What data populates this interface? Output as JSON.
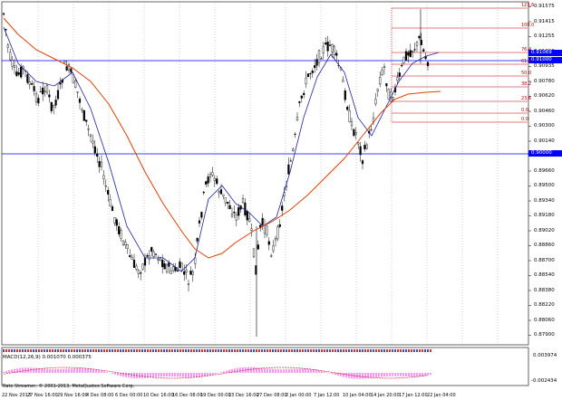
{
  "price_axis": {
    "labels": [
      "0.91575",
      "0.91415",
      "0.91255",
      "0.91090",
      "0.90935",
      "0.90780",
      "0.90620",
      "0.90460",
      "0.90300",
      "0.90140",
      "0.89820",
      "0.89660",
      "0.89500",
      "0.89340",
      "0.89180",
      "0.89020",
      "0.88860",
      "0.88700",
      "0.88540",
      "0.88380",
      "0.88220",
      "0.88060",
      "0.87900"
    ],
    "highlighted": [
      {
        "text": "0.91069"
      },
      {
        "text": "0.91000"
      },
      {
        "text": "0.90000"
      }
    ]
  },
  "fib_levels": [
    "123.6",
    "100.0",
    "76.4",
    "61.8",
    "50.0",
    "38.2",
    "23.6",
    "0.0",
    "0.0"
  ],
  "macd": {
    "label": "MACD(12,26,9) 0.001070 0.000375",
    "axis_top": "0.003974",
    "axis_bottom": "-0.002434"
  },
  "time_axis": [
    "22 Nov 2013",
    "27 Nov 16:00",
    "29 Nov 16:00",
    "4 Dec 08:00",
    "6 Dec 00:00",
    "10 Dec 16:00",
    "16 Dec 08:00",
    "19 Dec 00:00",
    "23 Dec 16:00",
    "27 Dec 08:00",
    "2 Jan 00:00",
    "7 Jan 12:00",
    "10 Jan 04:00",
    "14 Jan 20:00",
    "17 Jan 12:00",
    "22 Jan 04:00"
  ],
  "footer": "Rate Streamer, © 2001-2013, MetaQuotes Software Corp.",
  "colors": {
    "candle": "#000000",
    "ma_fast": "#1f1fa0",
    "ma_slow": "#e04000",
    "hline": "#0000ff",
    "fib": "#c00000",
    "macd": "#ff66ff",
    "signal": "#cc0000"
  }
}
